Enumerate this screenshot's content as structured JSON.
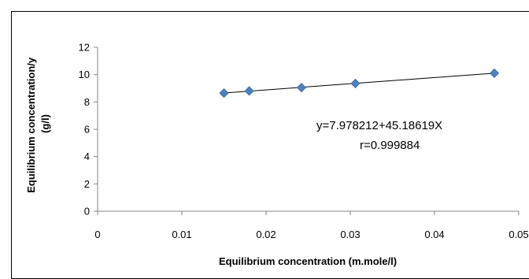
{
  "chart_data": {
    "type": "scatter",
    "xlabel": "Equilibrium concentration (m.mole/l)",
    "ylabel_lines": [
      "Equilibrium concentration/y",
      "(g/l)"
    ],
    "xlim": [
      0,
      0.05
    ],
    "ylim": [
      0,
      12
    ],
    "x_ticks": [
      "0",
      "0.01",
      "0.02",
      "0.03",
      "0.04",
      "0.05"
    ],
    "y_ticks": [
      "0",
      "2",
      "4",
      "6",
      "8",
      "10",
      "12"
    ],
    "grid": false,
    "legend": "none",
    "marker": "diamond",
    "marker_color": "#4f81bd",
    "series": [
      {
        "x": [
          0.015,
          0.018,
          0.0242,
          0.0306,
          0.0471
        ],
        "y": [
          8.65,
          8.8,
          9.05,
          9.35,
          10.1
        ]
      }
    ],
    "trendline": {
      "intercept": 7.978212,
      "slope": 45.18619
    },
    "annotation": {
      "equation": "y=7.978212+45.18619X",
      "r": "r=0.999884"
    }
  }
}
